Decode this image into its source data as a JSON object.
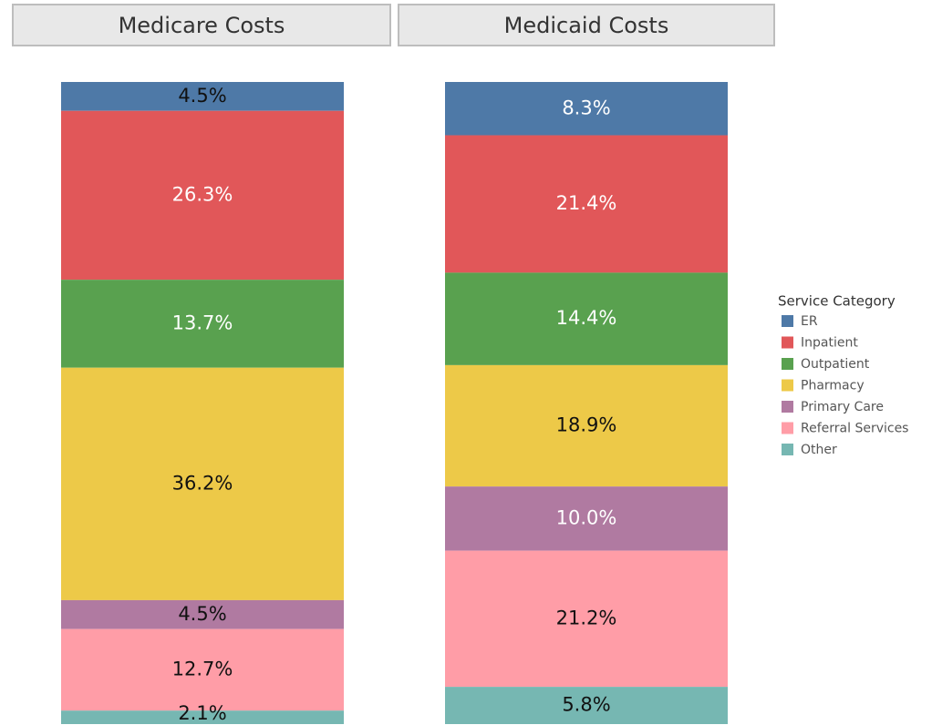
{
  "chart_data": {
    "type": "stacked_bar_100",
    "categories": [
      "Medicare Costs",
      "Medicaid Costs"
    ],
    "legend_title": "Service Category",
    "legend_position": "right",
    "ylim": [
      0,
      100
    ],
    "series": [
      {
        "name": "ER",
        "color": "#4e79a7",
        "values": [
          4.5,
          8.3
        ],
        "value_labels": [
          "4.5%",
          "8.3%"
        ]
      },
      {
        "name": "Inpatient",
        "color": "#e15759",
        "values": [
          26.3,
          21.4
        ],
        "value_labels": [
          "26.3%",
          "21.4%"
        ]
      },
      {
        "name": "Outpatient",
        "color": "#59a14f",
        "values": [
          13.7,
          14.4
        ],
        "value_labels": [
          "13.7%",
          "14.4%"
        ]
      },
      {
        "name": "Pharmacy",
        "color": "#edc948",
        "values": [
          36.2,
          18.9
        ],
        "value_labels": [
          "36.2%",
          "18.9%"
        ]
      },
      {
        "name": "Primary Care",
        "color": "#b07aa1",
        "values": [
          4.5,
          10.0
        ],
        "value_labels": [
          "4.5%",
          "10.0%"
        ]
      },
      {
        "name": "Referral Services",
        "color": "#ff9da7",
        "values": [
          12.7,
          21.2
        ],
        "value_labels": [
          "12.7%",
          "21.2%"
        ]
      },
      {
        "name": "Other",
        "color": "#76b7b2",
        "values": [
          2.1,
          5.8
        ],
        "value_labels": [
          "2.1%",
          "5.8%"
        ]
      }
    ]
  }
}
